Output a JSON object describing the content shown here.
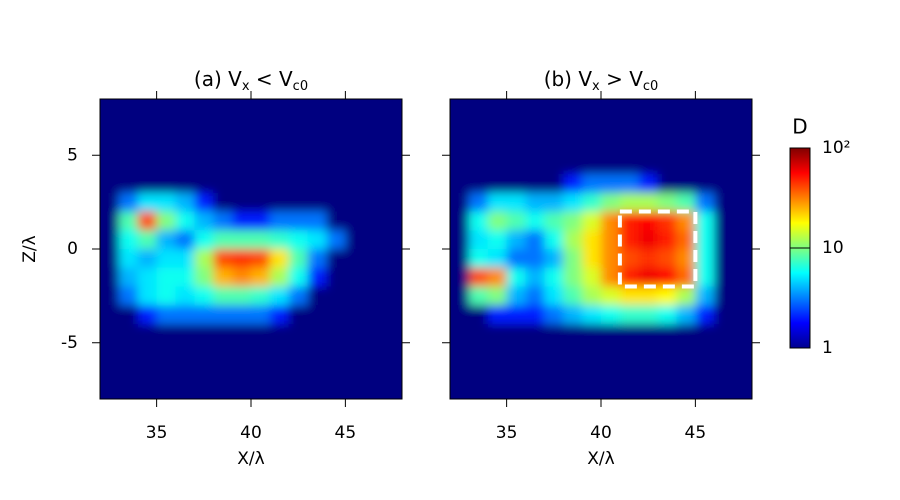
{
  "chart_data": [
    {
      "type": "heatmap",
      "title": [
        "(a) V",
        "x",
        " < V",
        "c0"
      ],
      "title_sub": [
        false,
        true,
        false,
        true
      ],
      "xlabel": "X/λ",
      "ylabel": "Z/λ",
      "xlim": [
        32,
        48
      ],
      "ylim": [
        -8,
        8
      ],
      "xticks": [
        35,
        40,
        45
      ],
      "yticks": [
        -5,
        0,
        5
      ],
      "show_ytick_labels": true,
      "x_edges": [
        32,
        33,
        34,
        35,
        36,
        37,
        38,
        39,
        40,
        41,
        42,
        43,
        44,
        45,
        46,
        47,
        48
      ],
      "z_edges": [
        8,
        7,
        6,
        5,
        4,
        3,
        2,
        1,
        0,
        -1,
        -2,
        -3,
        -4,
        -5,
        -6,
        -7,
        -8
      ],
      "values": [
        [
          1,
          1,
          1,
          1,
          1,
          1,
          1,
          1,
          1,
          1,
          1,
          1,
          1,
          1,
          1,
          1
        ],
        [
          1,
          1,
          1,
          1,
          1,
          1,
          1,
          1,
          1,
          1,
          1,
          1,
          1,
          1,
          1,
          1
        ],
        [
          1,
          1,
          1,
          1,
          1,
          1,
          1,
          1,
          1,
          1,
          1,
          1,
          1,
          1,
          1,
          1
        ],
        [
          1,
          1,
          1,
          1,
          1,
          1,
          1,
          1,
          1,
          1,
          1,
          1,
          1,
          1,
          1,
          1
        ],
        [
          1,
          1,
          1,
          1,
          1,
          1,
          1,
          1,
          1,
          1,
          1,
          1,
          1,
          1,
          1,
          1
        ],
        [
          1,
          3,
          5,
          5,
          4,
          2,
          1,
          1,
          1,
          1,
          1,
          1,
          1,
          1,
          1,
          1
        ],
        [
          1,
          8,
          40,
          10,
          6,
          4,
          3,
          2,
          2,
          3,
          3,
          3,
          1,
          1,
          1,
          1
        ],
        [
          1,
          6,
          8,
          4,
          3,
          6,
          8,
          8,
          8,
          7,
          6,
          5,
          3,
          1,
          1,
          1
        ],
        [
          1,
          5,
          4,
          5,
          5,
          12,
          40,
          45,
          40,
          20,
          8,
          3,
          1,
          1,
          1,
          1
        ],
        [
          1,
          4,
          5,
          6,
          6,
          10,
          25,
          30,
          25,
          12,
          6,
          2,
          1,
          1,
          1,
          1
        ],
        [
          1,
          3,
          5,
          6,
          5,
          6,
          8,
          8,
          7,
          5,
          3,
          1,
          1,
          1,
          1,
          1
        ],
        [
          1,
          1,
          2,
          3,
          3,
          3,
          3,
          3,
          3,
          2,
          1,
          1,
          1,
          1,
          1,
          1
        ],
        [
          1,
          1,
          1,
          1,
          1,
          1,
          1,
          1,
          1,
          1,
          1,
          1,
          1,
          1,
          1,
          1
        ],
        [
          1,
          1,
          1,
          1,
          1,
          1,
          1,
          1,
          1,
          1,
          1,
          1,
          1,
          1,
          1,
          1
        ],
        [
          1,
          1,
          1,
          1,
          1,
          1,
          1,
          1,
          1,
          1,
          1,
          1,
          1,
          1,
          1,
          1
        ],
        [
          1,
          1,
          1,
          1,
          1,
          1,
          1,
          1,
          1,
          1,
          1,
          1,
          1,
          1,
          1,
          1
        ]
      ]
    },
    {
      "type": "heatmap",
      "title": [
        "(b) V",
        "x",
        " > V",
        "c0"
      ],
      "title_sub": [
        false,
        true,
        false,
        true
      ],
      "xlabel": "X/λ",
      "xlim": [
        32,
        48
      ],
      "ylim": [
        -8,
        8
      ],
      "xticks": [
        35,
        40,
        45
      ],
      "yticks": [
        -5,
        0,
        5
      ],
      "show_ytick_labels": false,
      "x_edges": [
        32,
        33,
        34,
        35,
        36,
        37,
        38,
        39,
        40,
        41,
        42,
        43,
        44,
        45,
        46,
        47,
        48
      ],
      "z_edges": [
        8,
        7,
        6,
        5,
        4,
        3,
        2,
        1,
        0,
        -1,
        -2,
        -3,
        -4,
        -5,
        -6,
        -7,
        -8
      ],
      "box": {
        "x": [
          41,
          45
        ],
        "z": [
          -2,
          2
        ]
      },
      "values": [
        [
          1,
          1,
          1,
          1,
          1,
          1,
          1,
          1,
          1,
          1,
          1,
          1,
          1,
          1,
          1,
          1
        ],
        [
          1,
          1,
          1,
          1,
          1,
          1,
          1,
          1,
          1,
          1,
          1,
          1,
          1,
          1,
          1,
          1
        ],
        [
          1,
          1,
          1,
          1,
          1,
          1,
          1,
          1,
          1,
          1,
          1,
          1,
          1,
          1,
          1,
          1
        ],
        [
          1,
          1,
          1,
          1,
          1,
          1,
          1,
          1,
          1,
          1,
          1,
          1,
          1,
          1,
          1,
          1
        ],
        [
          1,
          1,
          1,
          1,
          1,
          1,
          2,
          3,
          3,
          3,
          2,
          1,
          1,
          1,
          1,
          1
        ],
        [
          1,
          3,
          5,
          5,
          4,
          4,
          5,
          7,
          10,
          12,
          12,
          10,
          8,
          3,
          1,
          1
        ],
        [
          1,
          6,
          10,
          8,
          6,
          8,
          10,
          15,
          30,
          50,
          55,
          45,
          30,
          6,
          1,
          1
        ],
        [
          1,
          5,
          6,
          4,
          3,
          6,
          12,
          20,
          30,
          50,
          60,
          50,
          35,
          6,
          1,
          1
        ],
        [
          1,
          6,
          5,
          3,
          3,
          4,
          10,
          20,
          30,
          40,
          45,
          40,
          30,
          6,
          1,
          1
        ],
        [
          1,
          40,
          30,
          6,
          4,
          6,
          10,
          15,
          30,
          50,
          60,
          55,
          35,
          6,
          1,
          1
        ],
        [
          1,
          8,
          10,
          4,
          3,
          5,
          8,
          12,
          15,
          20,
          20,
          18,
          12,
          4,
          1,
          1
        ],
        [
          1,
          1,
          2,
          2,
          2,
          3,
          4,
          5,
          6,
          7,
          7,
          6,
          4,
          2,
          1,
          1
        ],
        [
          1,
          1,
          1,
          1,
          1,
          1,
          1,
          1,
          1,
          1,
          1,
          1,
          1,
          1,
          1,
          1
        ],
        [
          1,
          1,
          1,
          1,
          1,
          1,
          1,
          1,
          1,
          1,
          1,
          1,
          1,
          1,
          1,
          1
        ],
        [
          1,
          1,
          1,
          1,
          1,
          1,
          1,
          1,
          1,
          1,
          1,
          1,
          1,
          1,
          1,
          1
        ],
        [
          1,
          1,
          1,
          1,
          1,
          1,
          1,
          1,
          1,
          1,
          1,
          1,
          1,
          1,
          1,
          1
        ]
      ]
    }
  ],
  "colorbar": {
    "label": "D",
    "lim": [
      1,
      100
    ],
    "log": true,
    "ticks": [
      1,
      10,
      {
        "value": 100,
        "label": "10²"
      }
    ]
  }
}
